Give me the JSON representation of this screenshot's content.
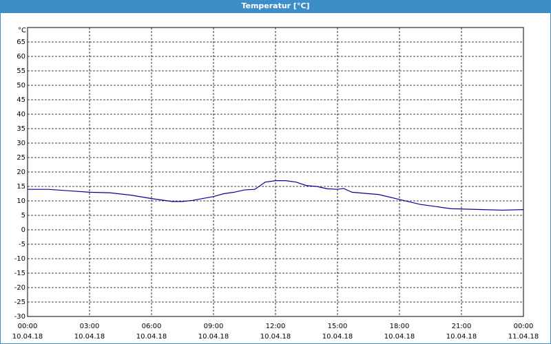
{
  "chart_data": {
    "type": "line",
    "title": "Temperatur [°C]",
    "y_label": "°C",
    "x": [
      0,
      1,
      2,
      3,
      4,
      5,
      6,
      7,
      7.5,
      8,
      9,
      9.5,
      10,
      10.5,
      11,
      11.5,
      12,
      12.5,
      13,
      13.5,
      14,
      14.5,
      15,
      15.3,
      15.7,
      16.5,
      17,
      18,
      19,
      20,
      20.5,
      21,
      22,
      23,
      24
    ],
    "values": [
      14,
      14,
      13.5,
      13,
      12.8,
      12,
      10.8,
      9.8,
      9.8,
      10.2,
      11.5,
      12.5,
      13,
      13.8,
      14,
      16.5,
      17,
      17,
      16.5,
      15.3,
      15,
      14.2,
      14,
      14.3,
      13,
      12.5,
      12.2,
      10.5,
      8.8,
      7.8,
      7.3,
      7.2,
      7,
      6.8,
      7
    ],
    "color": "#0000a0",
    "xlim": [
      0,
      24
    ],
    "ylim": [
      -30,
      70
    ],
    "yticks": [
      -30,
      -25,
      -20,
      -15,
      -10,
      -5,
      0,
      5,
      10,
      15,
      20,
      25,
      30,
      35,
      40,
      45,
      50,
      55,
      60,
      65
    ],
    "xticks": [
      {
        "value": 0,
        "label": "00:00"
      },
      {
        "value": 3,
        "label": "03:00"
      },
      {
        "value": 6,
        "label": "06:00"
      },
      {
        "value": 9,
        "label": "09:00"
      },
      {
        "value": 12,
        "label": "12:00"
      },
      {
        "value": 15,
        "label": "15:00"
      },
      {
        "value": 18,
        "label": "18:00"
      },
      {
        "value": 21,
        "label": "21:00"
      },
      {
        "value": 24,
        "label": "00:00"
      }
    ],
    "xtick_dates": [
      "10.04.18",
      "10.04.18",
      "10.04.18",
      "10.04.18",
      "10.04.18",
      "10.04.18",
      "10.04.18",
      "10.04.18",
      "11.04.18"
    ],
    "grid": true
  }
}
